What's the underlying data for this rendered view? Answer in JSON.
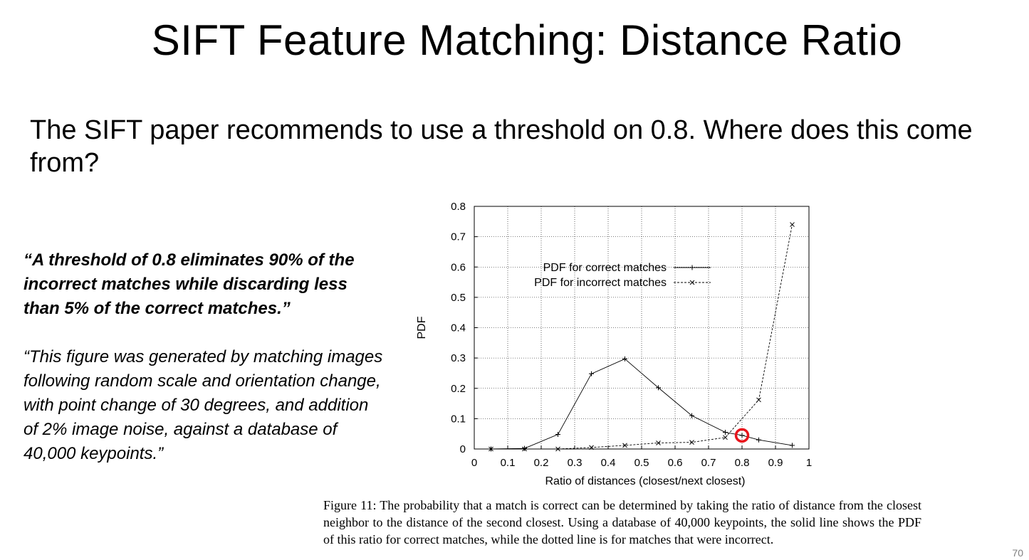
{
  "slide": {
    "title": "SIFT Feature Matching: Distance Ratio",
    "body": "The SIFT paper recommends to use a threshold on 0.8. Where does this come from?",
    "quote_bold": "“A threshold of 0.8 eliminates 90% of the incorrect matches while discarding less than 5% of the correct matches.”",
    "quote_regular": "“This figure was generated by matching images following random scale and orientation change, with point change of 30 degrees, and addition of 2% image noise, against a database of 40,000 keypoints.”",
    "caption": "Figure 11: The probability that a match is correct can be determined by taking the ratio of distance from the closest neighbor to the distance of the second closest. Using a database of 40,000 keypoints, the solid line shows the PDF of this ratio for correct matches, while the dotted line is for matches that were incorrect.",
    "slide_number": "70"
  },
  "chart_data": {
    "type": "line",
    "title": "",
    "xlabel": "Ratio of distances (closest/next closest)",
    "ylabel": "PDF",
    "xlim": [
      0,
      1
    ],
    "ylim": [
      0,
      0.8
    ],
    "xticks": [
      "0",
      "0.1",
      "0.2",
      "0.3",
      "0.4",
      "0.5",
      "0.6",
      "0.7",
      "0.8",
      "0.9",
      "1"
    ],
    "yticks": [
      "0",
      "0.1",
      "0.2",
      "0.3",
      "0.4",
      "0.5",
      "0.6",
      "0.7",
      "0.8"
    ],
    "grid": true,
    "legend_position": "upper-left",
    "highlight": {
      "x": 0.8,
      "y": 0.045,
      "color": "#e8141c"
    },
    "series": [
      {
        "name": "PDF for correct matches",
        "style": "solid",
        "x": [
          0.05,
          0.15,
          0.25,
          0.35,
          0.45,
          0.55,
          0.65,
          0.75,
          0.8,
          0.85,
          0.95
        ],
        "y": [
          0.0,
          0.002,
          0.048,
          0.248,
          0.297,
          0.202,
          0.11,
          0.055,
          0.045,
          0.03,
          0.012
        ]
      },
      {
        "name": "PDF for incorrect matches",
        "style": "dotted",
        "x": [
          0.05,
          0.15,
          0.25,
          0.35,
          0.45,
          0.55,
          0.65,
          0.75,
          0.85,
          0.95
        ],
        "y": [
          0.0,
          0.0,
          0.0,
          0.005,
          0.012,
          0.02,
          0.022,
          0.038,
          0.162,
          0.74
        ]
      }
    ]
  }
}
